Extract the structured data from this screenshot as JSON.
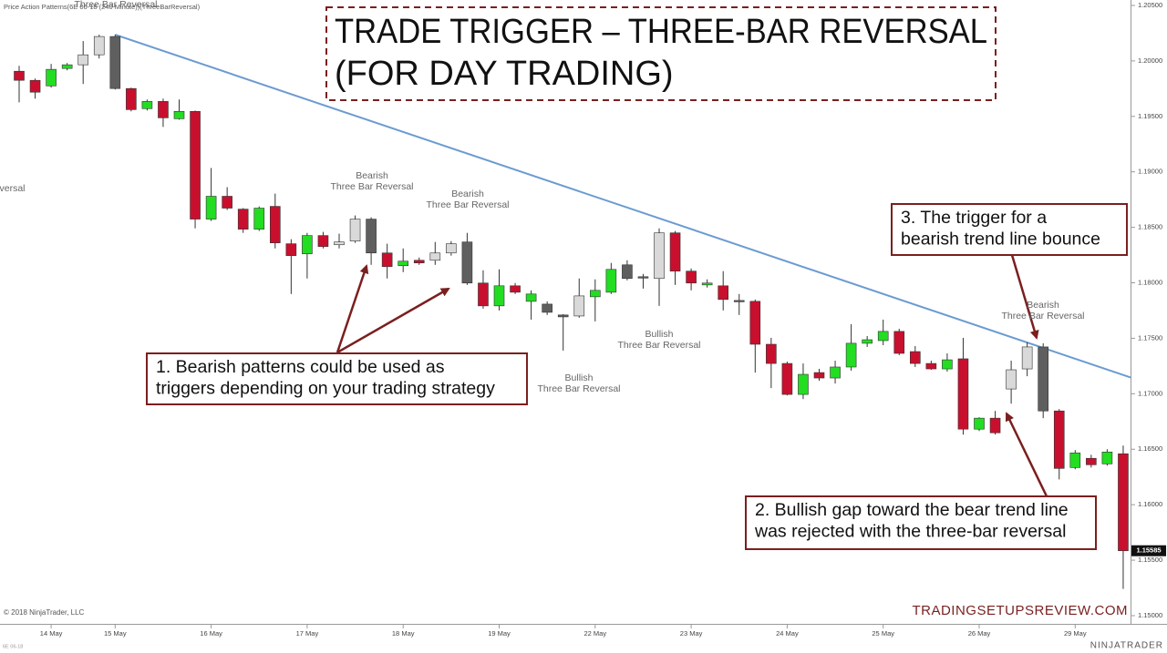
{
  "chart_data": {
    "type": "candlestick",
    "header": "Price Action Patterns(6E 06-18 (240 Minute))(ThreeBarReversal)",
    "title": [
      "TRADE TRIGGER – THREE-BAR REVERSAL",
      "(FOR DAY TRADING)"
    ],
    "categories": [
      null,
      null,
      "14 May",
      null,
      null,
      null,
      "15 May",
      null,
      null,
      null,
      null,
      null,
      "16 May",
      null,
      null,
      null,
      null,
      null,
      "17 May",
      null,
      null,
      null,
      null,
      null,
      "18 May",
      null,
      null,
      null,
      null,
      null,
      "19 May",
      null,
      null,
      null,
      null,
      null,
      "22 May",
      null,
      null,
      null,
      null,
      null,
      "23 May",
      null,
      null,
      null,
      null,
      null,
      "24 May",
      null,
      null,
      null,
      null,
      null,
      "25 May",
      null,
      null,
      null,
      null,
      null,
      "26 May",
      null,
      null,
      null,
      null,
      null,
      "29 May",
      null,
      null,
      null
    ],
    "open": [
      1.19907,
      1.19825,
      1.19775,
      1.19932,
      1.19965,
      1.20055,
      1.2022,
      1.19751,
      1.1957,
      1.19635,
      1.19479,
      1.19545,
      1.18574,
      1.1878,
      1.18664,
      1.18483,
      1.18689,
      1.18352,
      1.18261,
      1.18426,
      1.18343,
      1.18376,
      1.18574,
      1.18269,
      1.18154,
      1.18203,
      1.18203,
      1.18269,
      1.18368,
      1.17998,
      1.17792,
      1.17973,
      1.17833,
      1.17808,
      1.1771,
      1.17701,
      1.17874,
      1.17915,
      1.18162,
      1.18055,
      1.18039,
      1.1845,
      1.18105,
      1.17981,
      1.17973,
      1.17841,
      1.17833,
      1.17446,
      1.17273,
      1.16994,
      1.17191,
      1.17142,
      1.17241,
      1.17455,
      1.17479,
      1.17562,
      1.1738,
      1.17273,
      1.17224,
      1.17315,
      1.16681,
      1.1678,
      1.17043,
      1.17224,
      1.17422,
      1.16845,
      1.16335,
      1.16418,
      1.16368,
      1.16459
    ],
    "high": [
      1.19956,
      1.19841,
      1.19973,
      1.19981,
      1.20179,
      1.20236,
      1.20236,
      1.19759,
      1.19652,
      1.1966,
      1.19652,
      1.19553,
      1.19035,
      1.18862,
      1.18673,
      1.18689,
      1.18804,
      1.18393,
      1.1845,
      1.18459,
      1.18442,
      1.18607,
      1.1859,
      1.18352,
      1.1831,
      1.18228,
      1.18368,
      1.18376,
      1.1845,
      1.18113,
      1.18121,
      1.17998,
      1.17932,
      1.17833,
      1.17718,
      1.18039,
      1.18031,
      1.18179,
      1.18203,
      1.1808,
      1.18491,
      1.18467,
      1.18129,
      1.18031,
      1.18105,
      1.17899,
      1.1785,
      1.17504,
      1.1729,
      1.17273,
      1.17224,
      1.17298,
      1.17627,
      1.1752,
      1.17668,
      1.17586,
      1.1743,
      1.17298,
      1.17364,
      1.17504,
      1.16788,
      1.16845,
      1.17298,
      1.17463,
      1.17455,
      1.16862,
      1.16492,
      1.1645,
      1.165,
      1.16533
    ],
    "low": [
      1.19627,
      1.1966,
      1.19759,
      1.19915,
      1.19792,
      1.20022,
      1.19742,
      1.19545,
      1.19553,
      1.19405,
      1.19471,
      1.18491,
      1.18557,
      1.18656,
      1.1845,
      1.18467,
      1.1831,
      1.17899,
      1.18039,
      1.1831,
      1.1831,
      1.1836,
      1.18162,
      1.18039,
      1.18096,
      1.18162,
      1.18162,
      1.18245,
      1.17981,
      1.17767,
      1.17751,
      1.17899,
      1.17668,
      1.1771,
      1.17389,
      1.17685,
      1.17652,
      1.17899,
      1.18022,
      1.17948,
      1.17792,
      1.17981,
      1.17932,
      1.17957,
      1.17751,
      1.1771,
      1.17191,
      1.17051,
      1.16985,
      1.16952,
      1.17117,
      1.17092,
      1.17208,
      1.17422,
      1.17438,
      1.17348,
      1.17241,
      1.17216,
      1.17199,
      1.16632,
      1.16664,
      1.16632,
      1.16911,
      1.17158,
      1.1678,
      1.16228,
      1.16319,
      1.16335,
      1.16352,
      1.15241
    ],
    "close": [
      1.19825,
      1.19718,
      1.19924,
      1.19965,
      1.20055,
      1.2022,
      1.19751,
      1.19561,
      1.19635,
      1.19487,
      1.19545,
      1.18574,
      1.1878,
      1.18673,
      1.18483,
      1.18673,
      1.1836,
      1.18245,
      1.18426,
      1.18327,
      1.18368,
      1.18574,
      1.18269,
      1.18146,
      1.18195,
      1.18179,
      1.18269,
      1.18352,
      1.17998,
      1.17792,
      1.17973,
      1.17915,
      1.17899,
      1.17734,
      1.17693,
      1.17882,
      1.17932,
      1.18121,
      1.18039,
      1.18047,
      1.1845,
      1.18105,
      1.17998,
      1.17998,
      1.1785,
      1.17833,
      1.17446,
      1.17273,
      1.16994,
      1.17175,
      1.17142,
      1.17241,
      1.17455,
      1.17487,
      1.17562,
      1.17364,
      1.17273,
      1.17224,
      1.17306,
      1.16681,
      1.1678,
      1.16648,
      1.17216,
      1.17422,
      1.16845,
      1.16327,
      1.16467,
      1.1636,
      1.16475,
      1.15585
    ],
    "colors": [
      "#c8102e",
      "#c8102e",
      "#22dd22",
      "#22dd22",
      "#d9d9d9",
      "#d9d9d9",
      "#5f5f5f",
      "#c8102e",
      "#22dd22",
      "#c8102e",
      "#22dd22",
      "#c8102e",
      "#22dd22",
      "#c8102e",
      "#c8102e",
      "#22dd22",
      "#c8102e",
      "#c8102e",
      "#22dd22",
      "#c8102e",
      "#d9d9d9",
      "#d9d9d9",
      "#5f5f5f",
      "#c8102e",
      "#22dd22",
      "#c8102e",
      "#d9d9d9",
      "#d9d9d9",
      "#5f5f5f",
      "#c8102e",
      "#22dd22",
      "#c8102e",
      "#22dd22",
      "#5f5f5f",
      "#5f5f5f",
      "#d9d9d9",
      "#22dd22",
      "#22dd22",
      "#5f5f5f",
      "#5f5f5f",
      "#d9d9d9",
      "#c8102e",
      "#c8102e",
      "#22dd22",
      "#c8102e",
      "#5f5f5f",
      "#c8102e",
      "#c8102e",
      "#c8102e",
      "#22dd22",
      "#c8102e",
      "#22dd22",
      "#22dd22",
      "#22dd22",
      "#22dd22",
      "#c8102e",
      "#c8102e",
      "#c8102e",
      "#22dd22",
      "#c8102e",
      "#22dd22",
      "#c8102e",
      "#d9d9d9",
      "#d9d9d9",
      "#5f5f5f",
      "#c8102e",
      "#22dd22",
      "#c8102e",
      "#22dd22",
      "#c8102e"
    ],
    "ylim": [
      1.14926,
      1.20549
    ],
    "yticks": [
      {
        "value": 1.15,
        "label": "1.15000"
      },
      {
        "value": 1.155,
        "label": "1.15500"
      },
      {
        "value": 1.16,
        "label": "1.16000"
      },
      {
        "value": 1.165,
        "label": "1.16500"
      },
      {
        "value": 1.17,
        "label": "1.17000"
      },
      {
        "value": 1.175,
        "label": "1.17500"
      },
      {
        "value": 1.18,
        "label": "1.18000"
      },
      {
        "value": 1.185,
        "label": "1.18500"
      },
      {
        "value": 1.19,
        "label": "1.19000"
      },
      {
        "value": 1.195,
        "label": "1.19500"
      },
      {
        "value": 1.2,
        "label": "1.20000"
      },
      {
        "value": 1.205,
        "label": "1.20500"
      }
    ],
    "grid": false,
    "trend_line": {
      "x": [
        6,
        64
      ],
      "y": [
        1.20236,
        1.17413
      ],
      "color": "#6b9bd1"
    },
    "pattern_labels": [
      [
        "Three Bar Reversal"
      ],
      [
        "Bearish",
        "Three Bar Reversal"
      ],
      [
        "Bearish",
        "Three Bar Reversal"
      ],
      [
        "Bearish",
        "Three Bar Reversal"
      ],
      [
        "Bullish",
        "Three Bar Reversal"
      ],
      [
        "Bullish",
        "Three Bar Reversal"
      ],
      [
        "Bearish",
        "Three Bar Reversal"
      ]
    ],
    "annotations": [
      [
        "1. Bearish patterns could be used as",
        "triggers depending on your trading strategy"
      ],
      [
        "2. Bullish gap toward the bear trend line",
        "was rejected with the three-bar reversal"
      ],
      [
        "3. The trigger for a",
        "bearish trend line bounce"
      ]
    ],
    "copyright": "© 2018 NinjaTrader, LLC",
    "source": "TRADINGSETUPSREVIEW.COM",
    "logo": "NINJATRADER",
    "instrument": "6E 06-18"
  }
}
